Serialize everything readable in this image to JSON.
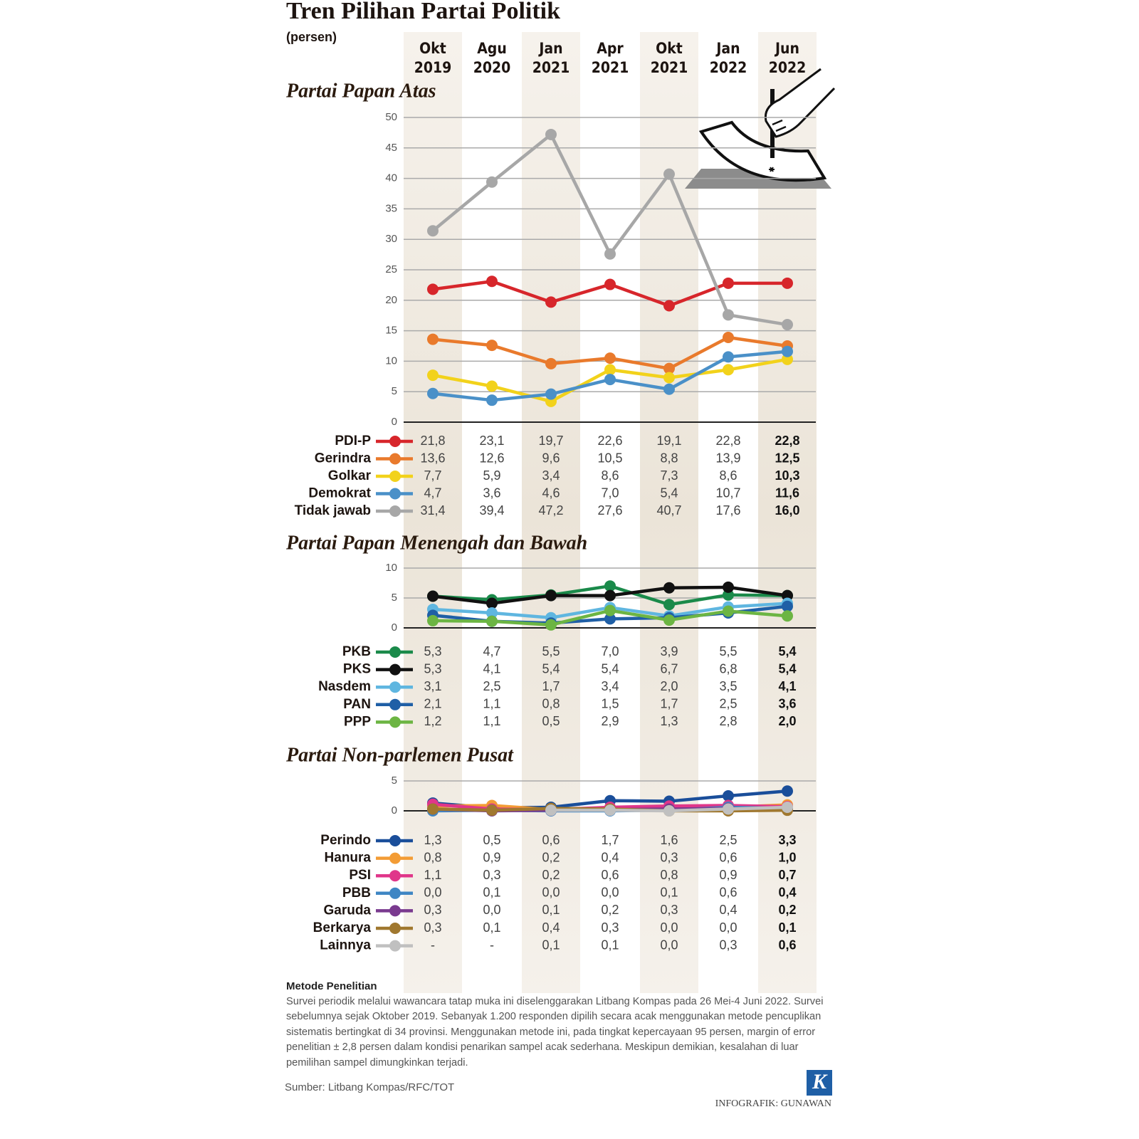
{
  "title": "Tren Pilihan Partai Politik",
  "subtitle": "(persen)",
  "chart_data": [
    {
      "type": "line",
      "title": "Partai Papan Atas",
      "categories": [
        "Okt 2019",
        "Agu 2020",
        "Jan 2021",
        "Apr 2021",
        "Okt 2021",
        "Jan 2022",
        "Jun 2022"
      ],
      "ylim": [
        0,
        50
      ],
      "yticks": [
        0,
        5,
        10,
        15,
        20,
        25,
        30,
        35,
        40,
        45,
        50
      ],
      "grid": true,
      "series": [
        {
          "name": "PDI-P",
          "color": "#d7262b",
          "values": [
            21.8,
            23.1,
            19.7,
            22.6,
            19.1,
            22.8,
            22.8
          ],
          "value_labels": [
            "21,8",
            "23,1",
            "19,7",
            "22,6",
            "19,1",
            "22,8",
            "22,8"
          ]
        },
        {
          "name": "Gerindra",
          "color": "#e97a2c",
          "values": [
            13.6,
            12.6,
            9.6,
            10.5,
            8.8,
            13.9,
            12.5
          ],
          "value_labels": [
            "13,6",
            "12,6",
            "9,6",
            "10,5",
            "8,8",
            "13,9",
            "12,5"
          ]
        },
        {
          "name": "Golkar",
          "color": "#f2d21b",
          "values": [
            7.7,
            5.9,
            3.4,
            8.6,
            7.3,
            8.6,
            10.3
          ],
          "value_labels": [
            "7,7",
            "5,9",
            "3,4",
            "8,6",
            "7,3",
            "8,6",
            "10,3"
          ]
        },
        {
          "name": "Demokrat",
          "color": "#4a90c8",
          "values": [
            4.7,
            3.6,
            4.6,
            7.0,
            5.4,
            10.7,
            11.6
          ],
          "value_labels": [
            "4,7",
            "3,6",
            "4,6",
            "7,0",
            "5,4",
            "10,7",
            "11,6"
          ]
        },
        {
          "name": "Tidak jawab",
          "color": "#a7a7a7",
          "values": [
            31.4,
            39.4,
            47.2,
            27.6,
            40.7,
            17.6,
            16.0
          ],
          "value_labels": [
            "31,4",
            "39,4",
            "47,2",
            "27,6",
            "40,7",
            "17,6",
            "16,0"
          ]
        }
      ]
    },
    {
      "type": "line",
      "title": "Partai Papan Menengah dan Bawah",
      "ylim": [
        0,
        10
      ],
      "yticks": [
        0,
        5,
        10
      ],
      "grid": true,
      "series": [
        {
          "name": "PKB",
          "color": "#1a8a4a",
          "values": [
            5.3,
            4.7,
            5.5,
            7.0,
            3.9,
            5.5,
            5.4
          ],
          "value_labels": [
            "5,3",
            "4,7",
            "5,5",
            "7,0",
            "3,9",
            "5,5",
            "5,4"
          ]
        },
        {
          "name": "PKS",
          "color": "#111111",
          "values": [
            5.3,
            4.1,
            5.4,
            5.4,
            6.7,
            6.8,
            5.4
          ],
          "value_labels": [
            "5,3",
            "4,1",
            "5,4",
            "5,4",
            "6,7",
            "6,8",
            "5,4"
          ]
        },
        {
          "name": "Nasdem",
          "color": "#5fb6e0",
          "values": [
            3.1,
            2.5,
            1.7,
            3.4,
            2.0,
            3.5,
            4.1
          ],
          "value_labels": [
            "3,1",
            "2,5",
            "1,7",
            "3,4",
            "2,0",
            "3,5",
            "4,1"
          ]
        },
        {
          "name": "PAN",
          "color": "#1f5fa6",
          "values": [
            2.1,
            1.1,
            0.8,
            1.5,
            1.7,
            2.5,
            3.6
          ],
          "value_labels": [
            "2,1",
            "1,1",
            "0,8",
            "1,5",
            "1,7",
            "2,5",
            "3,6"
          ]
        },
        {
          "name": "PPP",
          "color": "#6cb543",
          "values": [
            1.2,
            1.1,
            0.5,
            2.9,
            1.3,
            2.8,
            2.0
          ],
          "value_labels": [
            "1,2",
            "1,1",
            "0,5",
            "2,9",
            "1,3",
            "2,8",
            "2,0"
          ]
        }
      ]
    },
    {
      "type": "line",
      "title": "Partai Non-parlemen Pusat",
      "ylim": [
        0,
        5
      ],
      "yticks": [
        0,
        5
      ],
      "grid": true,
      "series": [
        {
          "name": "Perindo",
          "color": "#1a4e9a",
          "values": [
            1.3,
            0.5,
            0.6,
            1.7,
            1.6,
            2.5,
            3.3
          ],
          "value_labels": [
            "1,3",
            "0,5",
            "0,6",
            "1,7",
            "1,6",
            "2,5",
            "3,3"
          ]
        },
        {
          "name": "Hanura",
          "color": "#f39c35",
          "values": [
            0.8,
            0.9,
            0.2,
            0.4,
            0.3,
            0.6,
            1.0
          ],
          "value_labels": [
            "0,8",
            "0,9",
            "0,2",
            "0,4",
            "0,3",
            "0,6",
            "1,0"
          ]
        },
        {
          "name": "PSI",
          "color": "#e0368a",
          "values": [
            1.1,
            0.3,
            0.2,
            0.6,
            0.8,
            0.9,
            0.7
          ],
          "value_labels": [
            "1,1",
            "0,3",
            "0,2",
            "0,6",
            "0,8",
            "0,9",
            "0,7"
          ]
        },
        {
          "name": "PBB",
          "color": "#3f86c4",
          "values": [
            0.0,
            0.1,
            0.0,
            0.0,
            0.1,
            0.6,
            0.4
          ],
          "value_labels": [
            "0,0",
            "0,1",
            "0,0",
            "0,0",
            "0,1",
            "0,6",
            "0,4"
          ]
        },
        {
          "name": "Garuda",
          "color": "#7a3a8f",
          "values": [
            0.3,
            0.0,
            0.1,
            0.2,
            0.3,
            0.4,
            0.2
          ],
          "value_labels": [
            "0,3",
            "0,0",
            "0,1",
            "0,2",
            "0,3",
            "0,4",
            "0,2"
          ]
        },
        {
          "name": "Berkarya",
          "color": "#a0782f",
          "values": [
            0.3,
            0.1,
            0.4,
            0.3,
            0.0,
            0.0,
            0.1
          ],
          "value_labels": [
            "0,3",
            "0,1",
            "0,4",
            "0,3",
            "0,0",
            "0,0",
            "0,1"
          ]
        },
        {
          "name": "Lainnya",
          "color": "#c0c0c0",
          "values": [
            null,
            null,
            0.1,
            0.1,
            0.0,
            0.3,
            0.6
          ],
          "value_labels": [
            "-",
            "-",
            "0,1",
            "0,1",
            "0,0",
            "0,3",
            "0,6"
          ]
        }
      ]
    }
  ],
  "method": {
    "heading": "Metode Penelitian",
    "text": "Survei periodik melalui wawancara tatap muka ini diselenggarakan Litbang Kompas pada 26 Mei-4 Juni 2022. Survei sebelumnya sejak Oktober 2019. Sebanyak 1.200 responden dipilih secara acak menggunakan metode pencuplikan sistematis bertingkat di 34 provinsi. Menggunakan metode ini, pada tingkat kepercayaan 95 persen, margin of error penelitian ± 2,8 persen dalam kondisi penarikan sampel acak sederhana. Meskipun demikian, kesalahan di luar pemilihan sampel dimungkinkan terjadi."
  },
  "source": "Sumber: Litbang Kompas/RFC/TOT",
  "logo": "K",
  "credit": "INFOGRAFIK: GUNAWAN"
}
